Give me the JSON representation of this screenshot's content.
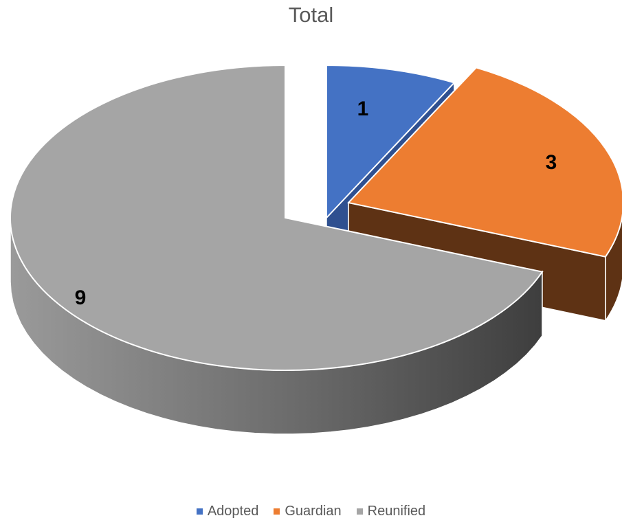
{
  "chart_data": {
    "type": "pie",
    "title": "Total",
    "categories": [
      "Adopted",
      "Guardian",
      "Reunified"
    ],
    "values": [
      1,
      3,
      9
    ],
    "data_labels": [
      "1",
      "3",
      "9"
    ],
    "colors": [
      "#4472C4",
      "#ED7D31",
      "#A5A5A5"
    ],
    "side_colors": [
      "#2F5090",
      "#5E3214",
      "#5A5A5A"
    ],
    "style": "3d-exploded",
    "legend_position": "bottom"
  }
}
